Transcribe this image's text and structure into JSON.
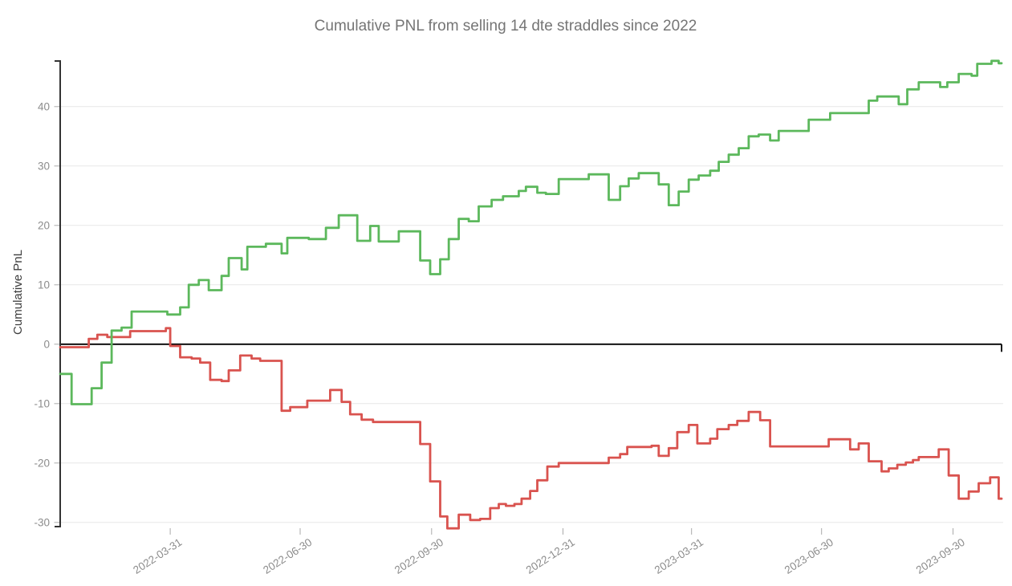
{
  "title": "Cumulative PNL from selling 14 dte straddles since 2022",
  "colors": {
    "background": "#ffffff",
    "title_text": "#757575",
    "axis_label_text": "#3d3d3d",
    "tick_label_text": "#8c8c8c",
    "grid_line": "#e7e7e7",
    "zero_line": "#000000",
    "axis_spine": "#333333",
    "tick_mark": "#aaaaaa",
    "green_series": "#5cb85c",
    "red_series": "#d9534f"
  },
  "chart_data": {
    "type": "line",
    "step": true,
    "title": "Cumulative PNL from selling 14 dte straddles since 2022",
    "xlabel": "",
    "ylabel": "Cumulative PnL",
    "ylim": [
      -31.5,
      48.2
    ],
    "y_ticks": [
      40,
      30,
      20,
      10,
      0,
      -10,
      -20,
      -30
    ],
    "x_tick_labels": [
      "2022-03-31",
      "2022-06-30",
      "2022-09-30",
      "2022-12-31",
      "2023-03-31",
      "2023-06-30",
      "2023-09-30"
    ],
    "x_domain": [
      "2022-01-13",
      "2023-11-03"
    ],
    "grid": "horizontal",
    "legend_position": "none",
    "zero_reference_line": true,
    "series": [
      {
        "name": "red-cumulative-pnl",
        "color": "#d9534f",
        "points": [
          [
            "2022-01-13",
            -0.5
          ],
          [
            "2022-02-02",
            0.9
          ],
          [
            "2022-02-08",
            1.6
          ],
          [
            "2022-02-15",
            1.2
          ],
          [
            "2022-03-03",
            2.2
          ],
          [
            "2022-03-28",
            2.7
          ],
          [
            "2022-03-31",
            -0.3
          ],
          [
            "2022-04-07",
            -2.2
          ],
          [
            "2022-04-15",
            -2.4
          ],
          [
            "2022-04-21",
            -3.1
          ],
          [
            "2022-04-28",
            -6.0
          ],
          [
            "2022-05-06",
            -6.2
          ],
          [
            "2022-05-11",
            -4.4
          ],
          [
            "2022-05-19",
            -1.9
          ],
          [
            "2022-05-27",
            -2.4
          ],
          [
            "2022-06-02",
            -2.8
          ],
          [
            "2022-06-17",
            -11.2
          ],
          [
            "2022-06-23",
            -10.6
          ],
          [
            "2022-07-05",
            -9.5
          ],
          [
            "2022-07-21",
            -7.7
          ],
          [
            "2022-07-29",
            -9.7
          ],
          [
            "2022-08-04",
            -11.8
          ],
          [
            "2022-08-12",
            -12.7
          ],
          [
            "2022-08-20",
            -13.1
          ],
          [
            "2022-09-22",
            -16.8
          ],
          [
            "2022-09-29",
            -23.1
          ],
          [
            "2022-10-06",
            -29.0
          ],
          [
            "2022-10-11",
            -31.0
          ],
          [
            "2022-10-19",
            -28.7
          ],
          [
            "2022-10-27",
            -29.6
          ],
          [
            "2022-11-03",
            -29.4
          ],
          [
            "2022-11-10",
            -27.6
          ],
          [
            "2022-11-16",
            -26.9
          ],
          [
            "2022-11-21",
            -27.2
          ],
          [
            "2022-11-27",
            -26.9
          ],
          [
            "2022-12-02",
            -26.0
          ],
          [
            "2022-12-08",
            -24.7
          ],
          [
            "2022-12-13",
            -22.9
          ],
          [
            "2022-12-20",
            -20.6
          ],
          [
            "2022-12-28",
            -20.0
          ],
          [
            "2023-02-01",
            -19.1
          ],
          [
            "2023-02-09",
            -18.5
          ],
          [
            "2023-02-14",
            -17.3
          ],
          [
            "2023-03-03",
            -17.1
          ],
          [
            "2023-03-08",
            -18.8
          ],
          [
            "2023-03-15",
            -17.5
          ],
          [
            "2023-03-21",
            -14.8
          ],
          [
            "2023-03-29",
            -13.6
          ],
          [
            "2023-04-04",
            -16.7
          ],
          [
            "2023-04-13",
            -15.9
          ],
          [
            "2023-04-18",
            -14.3
          ],
          [
            "2023-04-26",
            -13.6
          ],
          [
            "2023-05-02",
            -12.9
          ],
          [
            "2023-05-10",
            -11.4
          ],
          [
            "2023-05-18",
            -12.8
          ],
          [
            "2023-05-25",
            -17.2
          ],
          [
            "2023-07-05",
            -16.0
          ],
          [
            "2023-07-20",
            -17.7
          ],
          [
            "2023-07-26",
            -16.7
          ],
          [
            "2023-08-02",
            -19.7
          ],
          [
            "2023-08-11",
            -21.4
          ],
          [
            "2023-08-16",
            -20.9
          ],
          [
            "2023-08-22",
            -20.3
          ],
          [
            "2023-08-28",
            -19.9
          ],
          [
            "2023-09-02",
            -19.5
          ],
          [
            "2023-09-06",
            -19.0
          ],
          [
            "2023-09-20",
            -17.7
          ],
          [
            "2023-09-27",
            -22.1
          ],
          [
            "2023-10-04",
            -26.0
          ],
          [
            "2023-10-11",
            -24.8
          ],
          [
            "2023-10-18",
            -23.4
          ],
          [
            "2023-10-26",
            -22.4
          ],
          [
            "2023-11-01",
            -26.0
          ]
        ]
      },
      {
        "name": "green-cumulative-pnl",
        "color": "#5cb85c",
        "points": [
          [
            "2022-01-13",
            -5.0
          ],
          [
            "2022-01-21",
            -10.1
          ],
          [
            "2022-02-04",
            -7.4
          ],
          [
            "2022-02-11",
            -3.1
          ],
          [
            "2022-02-18",
            2.3
          ],
          [
            "2022-02-25",
            2.8
          ],
          [
            "2022-03-04",
            5.5
          ],
          [
            "2022-03-29",
            5.0
          ],
          [
            "2022-04-07",
            6.2
          ],
          [
            "2022-04-13",
            10.0
          ],
          [
            "2022-04-20",
            10.8
          ],
          [
            "2022-04-27",
            9.1
          ],
          [
            "2022-05-06",
            11.5
          ],
          [
            "2022-05-11",
            14.5
          ],
          [
            "2022-05-20",
            12.6
          ],
          [
            "2022-05-24",
            16.4
          ],
          [
            "2022-06-06",
            16.9
          ],
          [
            "2022-06-17",
            15.3
          ],
          [
            "2022-06-21",
            17.9
          ],
          [
            "2022-07-06",
            17.7
          ],
          [
            "2022-07-18",
            19.6
          ],
          [
            "2022-07-27",
            21.7
          ],
          [
            "2022-08-09",
            17.4
          ],
          [
            "2022-08-18",
            19.9
          ],
          [
            "2022-08-24",
            17.3
          ],
          [
            "2022-09-07",
            19.0
          ],
          [
            "2022-09-22",
            14.1
          ],
          [
            "2022-09-29",
            11.8
          ],
          [
            "2022-10-06",
            14.3
          ],
          [
            "2022-10-12",
            17.7
          ],
          [
            "2022-10-19",
            21.1
          ],
          [
            "2022-10-26",
            20.7
          ],
          [
            "2022-11-02",
            23.2
          ],
          [
            "2022-11-11",
            24.3
          ],
          [
            "2022-11-19",
            24.9
          ],
          [
            "2022-11-30",
            25.8
          ],
          [
            "2022-12-05",
            26.5
          ],
          [
            "2022-12-13",
            25.5
          ],
          [
            "2022-12-19",
            25.3
          ],
          [
            "2022-12-28",
            27.8
          ],
          [
            "2023-01-18",
            28.6
          ],
          [
            "2023-02-01",
            24.3
          ],
          [
            "2023-02-09",
            26.6
          ],
          [
            "2023-02-15",
            27.9
          ],
          [
            "2023-02-22",
            28.8
          ],
          [
            "2023-03-08",
            26.9
          ],
          [
            "2023-03-15",
            23.4
          ],
          [
            "2023-03-22",
            25.7
          ],
          [
            "2023-03-29",
            27.7
          ],
          [
            "2023-04-05",
            28.4
          ],
          [
            "2023-04-13",
            29.2
          ],
          [
            "2023-04-19",
            30.7
          ],
          [
            "2023-04-26",
            31.9
          ],
          [
            "2023-05-03",
            33.0
          ],
          [
            "2023-05-10",
            35.0
          ],
          [
            "2023-05-17",
            35.3
          ],
          [
            "2023-05-25",
            34.3
          ],
          [
            "2023-05-31",
            35.9
          ],
          [
            "2023-06-21",
            37.8
          ],
          [
            "2023-07-06",
            38.9
          ],
          [
            "2023-08-02",
            41.0
          ],
          [
            "2023-08-08",
            41.7
          ],
          [
            "2023-08-23",
            40.4
          ],
          [
            "2023-08-29",
            42.9
          ],
          [
            "2023-09-06",
            44.1
          ],
          [
            "2023-09-21",
            43.3
          ],
          [
            "2023-09-26",
            44.1
          ],
          [
            "2023-10-04",
            45.5
          ],
          [
            "2023-10-13",
            45.2
          ],
          [
            "2023-10-17",
            47.2
          ],
          [
            "2023-10-27",
            47.7
          ],
          [
            "2023-11-01",
            47.3
          ]
        ]
      }
    ]
  }
}
